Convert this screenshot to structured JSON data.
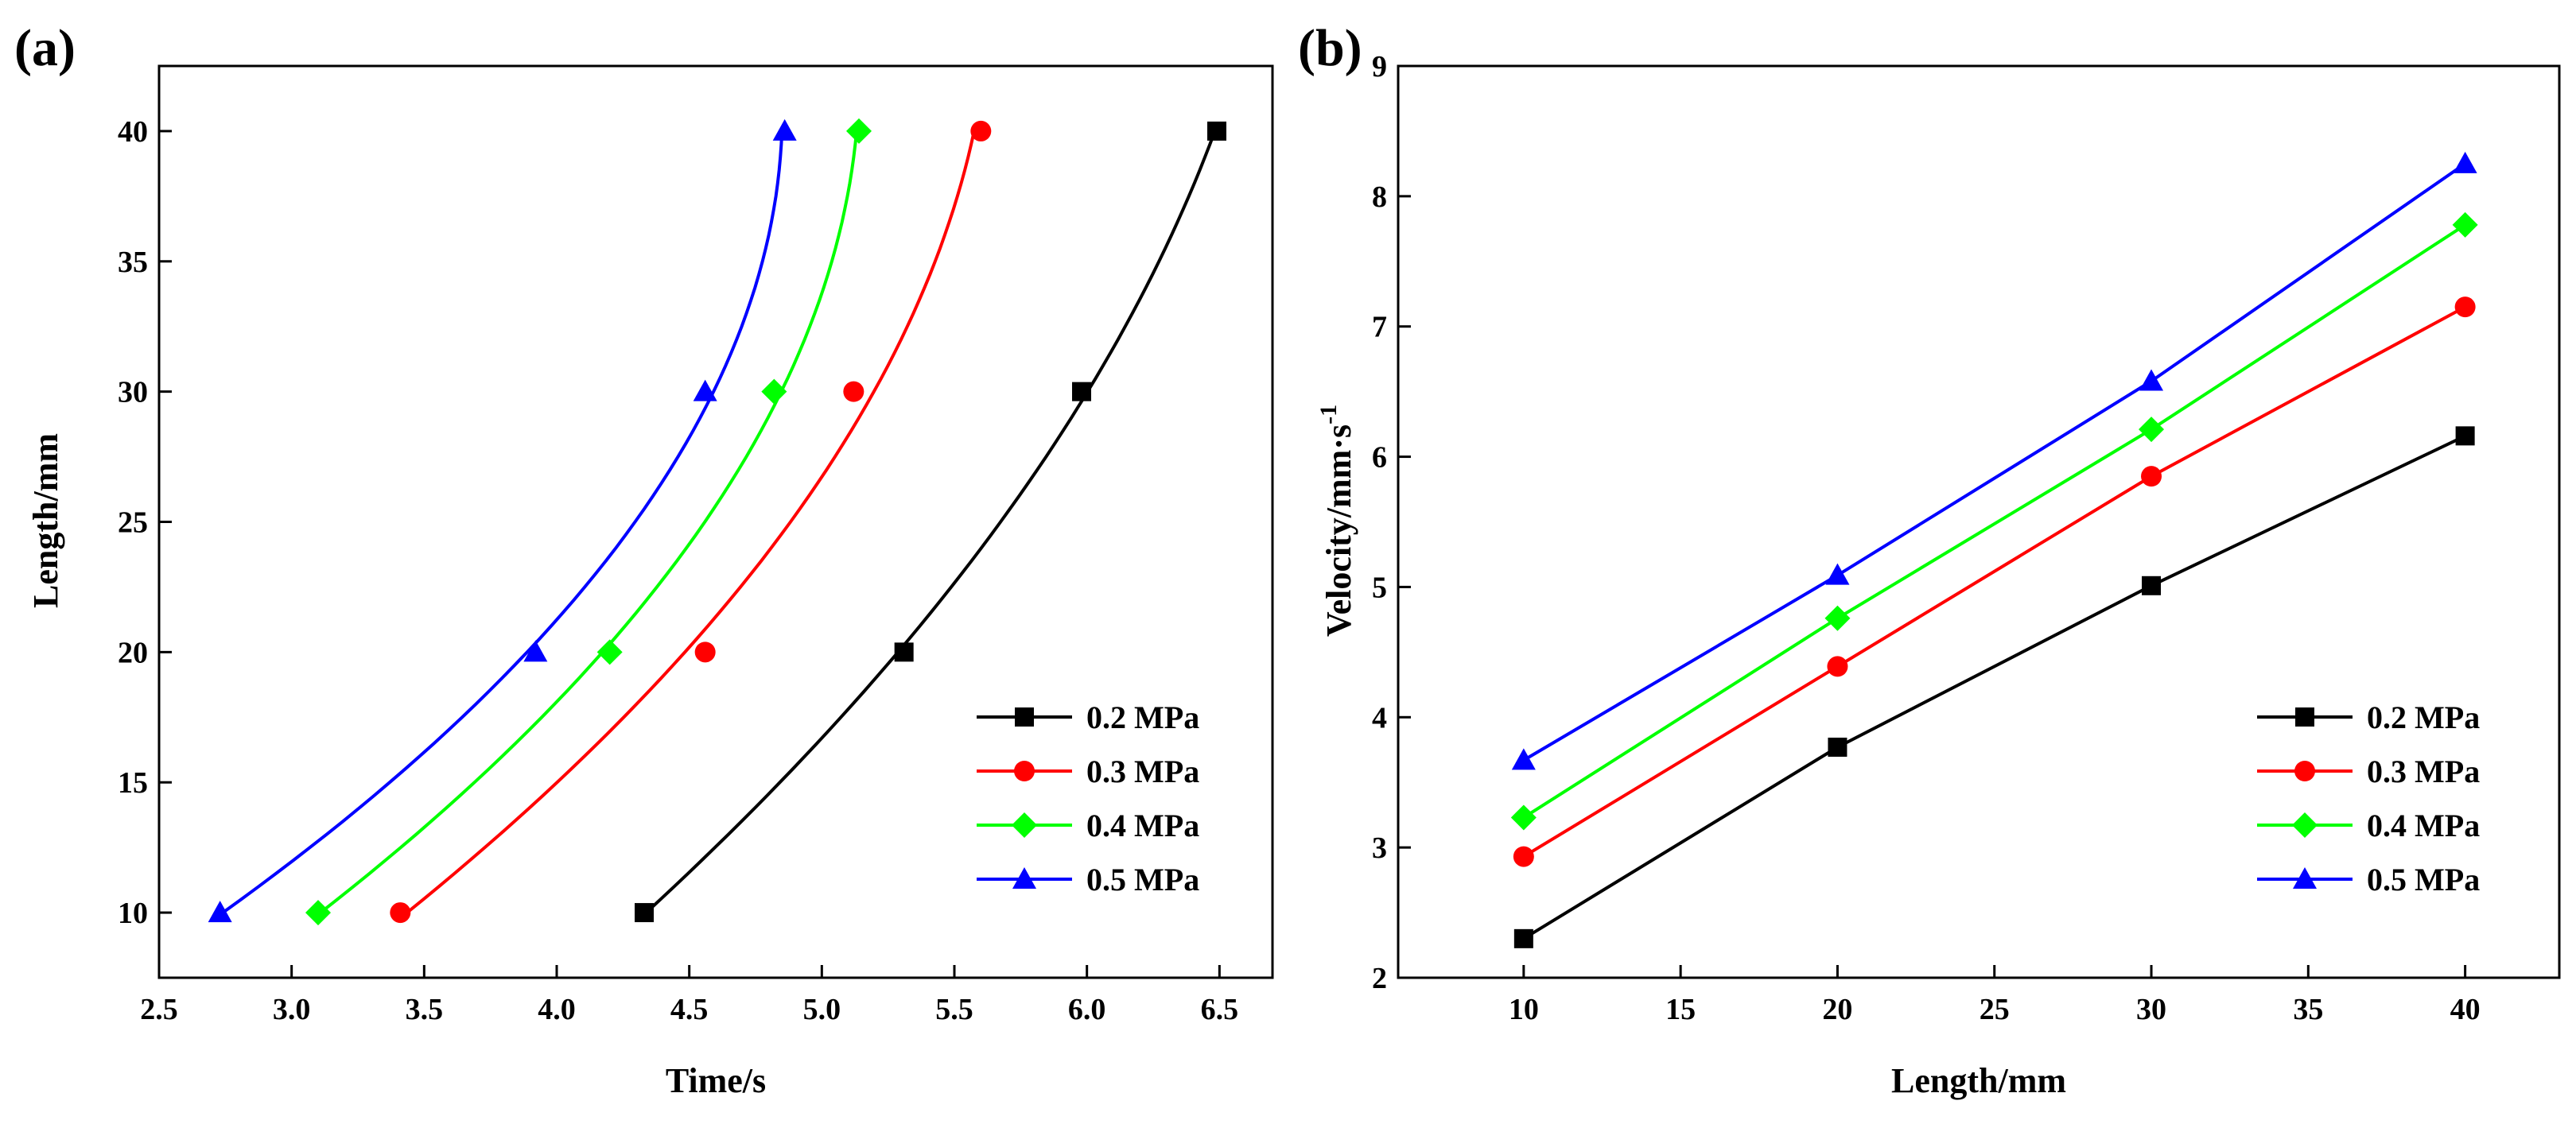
{
  "chart_data": [
    {
      "panel": "(a)",
      "type": "line",
      "title": "",
      "xlabel": "Time/s",
      "ylabel": "Length/mm",
      "xlim": [
        2.5,
        6.7
      ],
      "ylim": [
        7.5,
        42.5
      ],
      "xticks": [
        "2.5",
        "3.0",
        "3.5",
        "4.0",
        "4.5",
        "5.0",
        "5.5",
        "6.0",
        "6.5"
      ],
      "yticks": [
        "10",
        "15",
        "20",
        "25",
        "30",
        "35",
        "40"
      ],
      "grid": false,
      "legend_position": "bottom-right",
      "line_style": "smooth fit",
      "series": [
        {
          "name": "0.2 MPa",
          "color": "#000000",
          "marker": "square",
          "x": [
            4.33,
            5.31,
            5.98,
            6.49
          ],
          "y": [
            10,
            20,
            30,
            40
          ]
        },
        {
          "name": "0.3 MPa",
          "color": "#ff0000",
          "marker": "circle",
          "x": [
            3.41,
            4.56,
            5.12,
            5.6
          ],
          "y": [
            10,
            20,
            30,
            40
          ]
        },
        {
          "name": "0.4 MPa",
          "color": "#00ff00",
          "marker": "diamond",
          "x": [
            3.1,
            4.2,
            4.82,
            5.14
          ],
          "y": [
            10,
            20,
            30,
            40
          ]
        },
        {
          "name": "0.5 MPa",
          "color": "#0000ff",
          "marker": "triangle",
          "x": [
            2.73,
            3.92,
            4.56,
            4.86
          ],
          "y": [
            10,
            20,
            30,
            40
          ]
        }
      ]
    },
    {
      "panel": "(b)",
      "type": "line",
      "title": "",
      "xlabel": "Length/mm",
      "ylabel": "Velocity/mm·s",
      "ylabel_superscript": "-1",
      "xlim": [
        6,
        43
      ],
      "ylim": [
        2,
        9
      ],
      "xticks": [
        "10",
        "15",
        "20",
        "25",
        "30",
        "35",
        "40"
      ],
      "yticks": [
        "2",
        "3",
        "4",
        "5",
        "6",
        "7",
        "8",
        "9"
      ],
      "grid": false,
      "legend_position": "bottom-right",
      "line_style": "straight",
      "series": [
        {
          "name": "0.2 MPa",
          "color": "#000000",
          "marker": "square",
          "x": [
            10,
            20,
            30,
            40
          ],
          "y": [
            2.3,
            3.77,
            5.01,
            6.16
          ]
        },
        {
          "name": "0.3 MPa",
          "color": "#ff0000",
          "marker": "circle",
          "x": [
            10,
            20,
            30,
            40
          ],
          "y": [
            2.93,
            4.39,
            5.85,
            7.15
          ]
        },
        {
          "name": "0.4 MPa",
          "color": "#00ff00",
          "marker": "diamond",
          "x": [
            10,
            20,
            30,
            40
          ],
          "y": [
            3.23,
            4.76,
            6.21,
            7.78
          ]
        },
        {
          "name": "0.5 MPa",
          "color": "#0000ff",
          "marker": "triangle",
          "x": [
            10,
            20,
            30,
            40
          ],
          "y": [
            3.67,
            5.09,
            6.58,
            8.25
          ]
        }
      ]
    }
  ]
}
